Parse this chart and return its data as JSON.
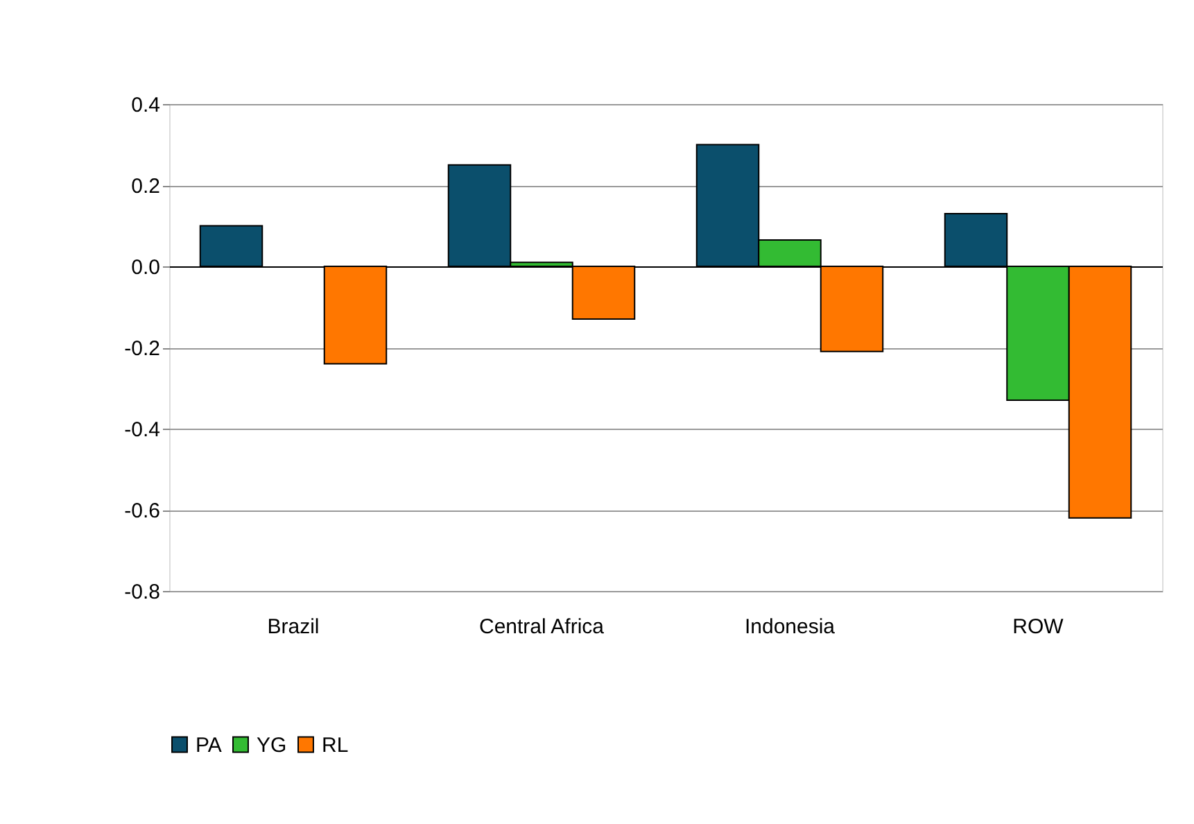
{
  "chart_data": {
    "type": "bar",
    "categories": [
      "Brazil",
      "Central Africa",
      "Indonesia",
      "ROW"
    ],
    "series": [
      {
        "name": "PA",
        "color": "#0b4f6c",
        "values": [
          0.1,
          0.25,
          0.3,
          0.13
        ]
      },
      {
        "name": "YG",
        "color": "#33bb33",
        "values": [
          null,
          0.01,
          0.065,
          -0.33
        ]
      },
      {
        "name": "RL",
        "color": "#ff7700",
        "values": [
          -0.24,
          -0.13,
          -0.21,
          -0.62
        ]
      }
    ],
    "ylim": [
      -0.8,
      0.4
    ],
    "yticks": [
      {
        "value": -0.8,
        "label": "-0.8"
      },
      {
        "value": -0.6,
        "label": "-0.6"
      },
      {
        "value": -0.4,
        "label": "-0.4"
      },
      {
        "value": -0.2,
        "label": "-0.2"
      },
      {
        "value": 0,
        "label": "0.0"
      },
      {
        "value": 0.2,
        "label": "0.2"
      },
      {
        "value": 0.4,
        "label": "0.4"
      }
    ],
    "grid": "y",
    "legend": "bottom"
  }
}
